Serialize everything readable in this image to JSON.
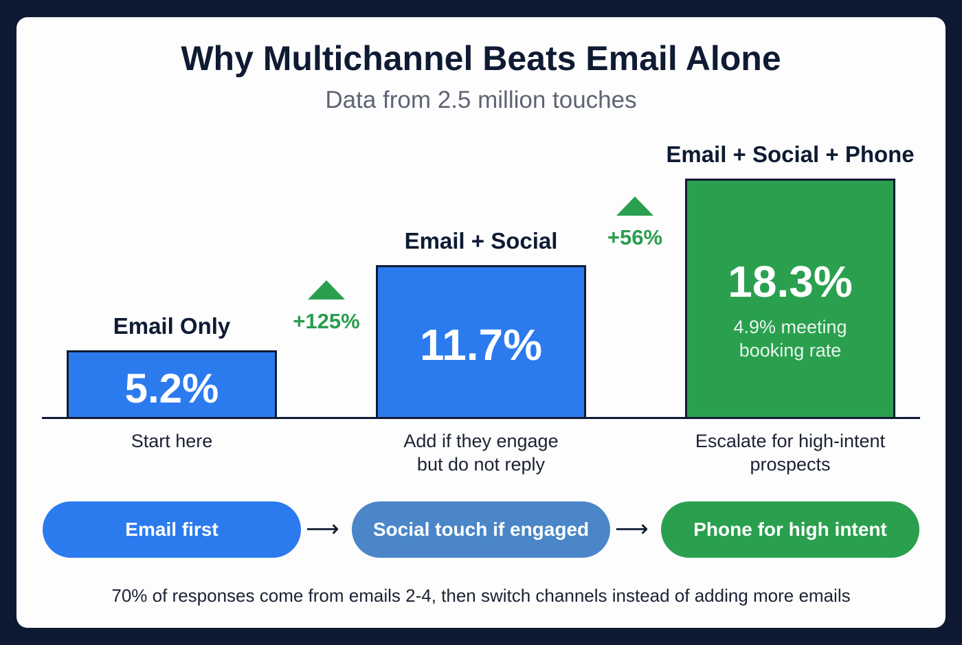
{
  "title": "Why Multichannel Beats Email Alone",
  "subtitle": "Data from 2.5 million touches",
  "chart_data": {
    "type": "bar",
    "categories": [
      "Email Only",
      "Email + Social",
      "Email + Social + Phone"
    ],
    "values": [
      5.2,
      11.7,
      18.3
    ],
    "value_labels": [
      "5.2%",
      "11.7%",
      "18.3%"
    ],
    "secondary_label": "4.9% meeting booking rate",
    "notes": [
      "Start here",
      "Add if they engage but do not reply",
      "Escalate for high-intent prospects"
    ],
    "deltas": [
      "+125%",
      "+56%"
    ],
    "colors": [
      "#2b7bef",
      "#2b7bef",
      "#2aa04f"
    ],
    "ylabel": "",
    "xlabel": "",
    "ylim": [
      0,
      20
    ],
    "grid": false
  },
  "flow": [
    {
      "label": "Email first",
      "color": "#2b7bef"
    },
    {
      "label": "Social touch if engaged",
      "color": "#4a86c8"
    },
    {
      "label": "Phone for high intent",
      "color": "#2aa04f"
    }
  ],
  "arrow": "⟶",
  "footer": "70% of responses come from emails 2-4, then switch channels instead of adding more emails"
}
